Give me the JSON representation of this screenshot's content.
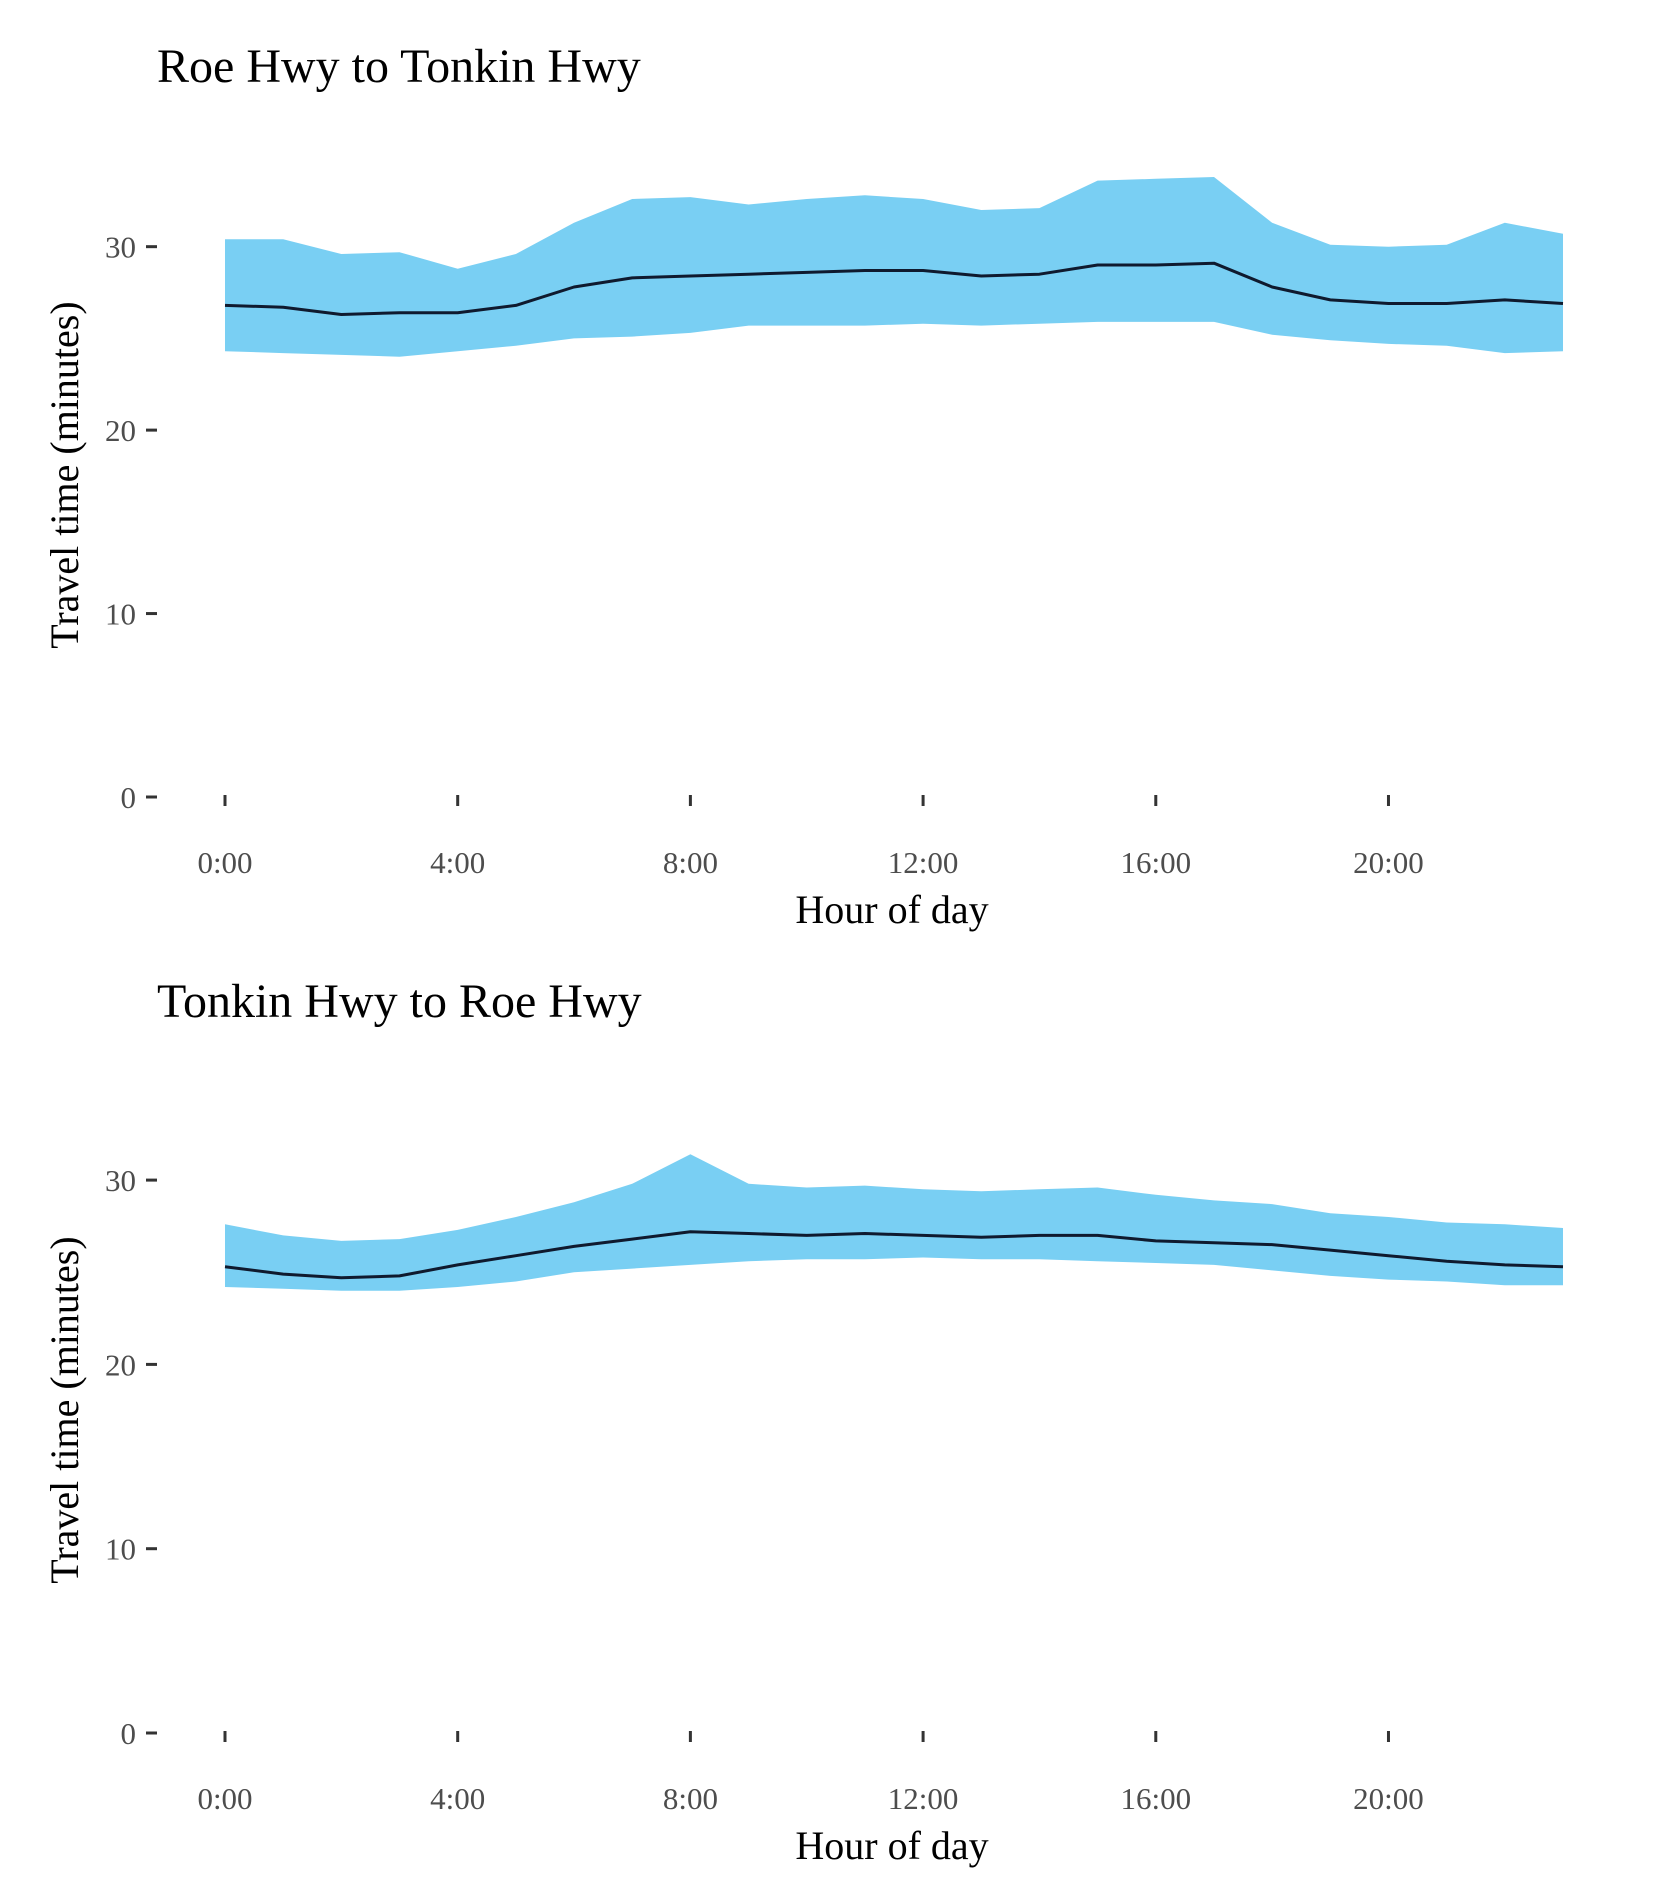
{
  "chart_data": [
    {
      "type": "area",
      "title": "Roe Hwy to Tonkin Hwy",
      "xlabel": "Hour of day",
      "ylabel": "Travel time (minutes)",
      "ylim": [
        0,
        35
      ],
      "xlim": [
        0,
        23
      ],
      "x_ticks": [
        0,
        4,
        8,
        12,
        16,
        20
      ],
      "x_tick_labels": [
        "0:00",
        "4:00",
        "8:00",
        "12:00",
        "16:00",
        "20:00"
      ],
      "y_ticks": [
        0,
        10,
        20,
        30
      ],
      "y_tick_labels": [
        "0",
        "10",
        "20",
        "30"
      ],
      "grid": false,
      "legend": "none",
      "band_color": "#79cff3",
      "line_color": "#0f1a2e",
      "x": [
        0,
        1,
        2,
        3,
        4,
        5,
        6,
        7,
        8,
        9,
        10,
        11,
        12,
        13,
        14,
        15,
        16,
        17,
        18,
        19,
        20,
        21,
        22,
        23
      ],
      "series": [
        {
          "role": "upper",
          "values": [
            30.4,
            30.4,
            29.6,
            29.7,
            28.8,
            29.6,
            31.3,
            32.6,
            32.7,
            32.3,
            32.6,
            32.8,
            32.6,
            32.0,
            32.1,
            33.6,
            33.7,
            33.8,
            31.3,
            30.1,
            30.0,
            30.1,
            31.3,
            30.7
          ]
        },
        {
          "role": "mean",
          "values": [
            26.8,
            26.7,
            26.3,
            26.4,
            26.4,
            26.8,
            27.8,
            28.3,
            28.4,
            28.5,
            28.6,
            28.7,
            28.7,
            28.4,
            28.5,
            29.0,
            29.0,
            29.1,
            27.8,
            27.1,
            26.9,
            26.9,
            27.1,
            26.9
          ]
        },
        {
          "role": "lower",
          "values": [
            24.3,
            24.2,
            24.1,
            24.0,
            24.3,
            24.6,
            25.0,
            25.1,
            25.3,
            25.7,
            25.7,
            25.7,
            25.8,
            25.7,
            25.8,
            25.9,
            25.9,
            25.9,
            25.2,
            24.9,
            24.7,
            24.6,
            24.2,
            24.3
          ]
        }
      ]
    },
    {
      "type": "area",
      "title": "Tonkin Hwy to Roe Hwy",
      "xlabel": "Hour of day",
      "ylabel": "Travel time (minutes)",
      "ylim": [
        0,
        35
      ],
      "xlim": [
        0,
        23
      ],
      "x_ticks": [
        0,
        4,
        8,
        12,
        16,
        20
      ],
      "x_tick_labels": [
        "0:00",
        "4:00",
        "8:00",
        "12:00",
        "16:00",
        "20:00"
      ],
      "y_ticks": [
        0,
        10,
        20,
        30
      ],
      "y_tick_labels": [
        "0",
        "10",
        "20",
        "30"
      ],
      "grid": false,
      "legend": "none",
      "band_color": "#79cff3",
      "line_color": "#0f1a2e",
      "x": [
        0,
        1,
        2,
        3,
        4,
        5,
        6,
        7,
        8,
        9,
        10,
        11,
        12,
        13,
        14,
        15,
        16,
        17,
        18,
        19,
        20,
        21,
        22,
        23
      ],
      "series": [
        {
          "role": "upper",
          "values": [
            27.6,
            27.0,
            26.7,
            26.8,
            27.3,
            28.0,
            28.8,
            29.8,
            31.4,
            29.8,
            29.6,
            29.7,
            29.5,
            29.4,
            29.5,
            29.6,
            29.2,
            28.9,
            28.7,
            28.2,
            28.0,
            27.7,
            27.6,
            27.4
          ]
        },
        {
          "role": "mean",
          "values": [
            25.3,
            24.9,
            24.7,
            24.8,
            25.4,
            25.9,
            26.4,
            26.8,
            27.2,
            27.1,
            27.0,
            27.1,
            27.0,
            26.9,
            27.0,
            27.0,
            26.7,
            26.6,
            26.5,
            26.2,
            25.9,
            25.6,
            25.4,
            25.3
          ]
        },
        {
          "role": "lower",
          "values": [
            24.2,
            24.1,
            24.0,
            24.0,
            24.2,
            24.5,
            25.0,
            25.2,
            25.4,
            25.6,
            25.7,
            25.7,
            25.8,
            25.7,
            25.7,
            25.6,
            25.5,
            25.4,
            25.1,
            24.8,
            24.6,
            24.5,
            24.3,
            24.3
          ]
        }
      ]
    }
  ]
}
